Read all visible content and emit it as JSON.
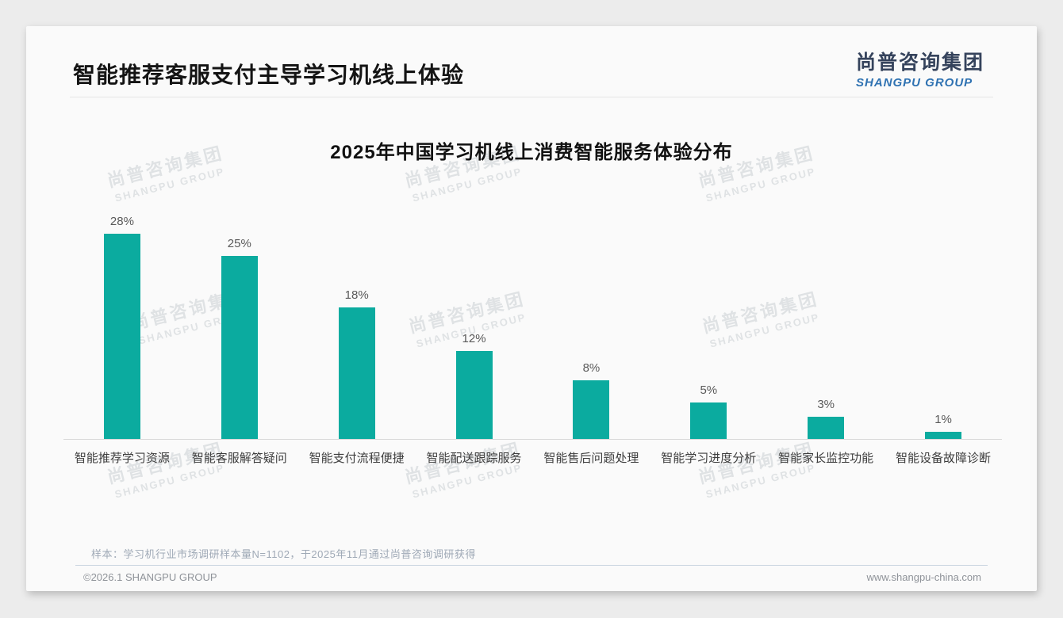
{
  "page": {
    "header": {
      "title": "智能推荐客服支付主导学习机线上体验"
    },
    "logo": {
      "cn": "尚普咨询集团",
      "en": "SHANGPU GROUP"
    },
    "watermark": {
      "cn": "尚普咨询集团",
      "en": "SHANGPU GROUP"
    },
    "note": "样本：学习机行业市场调研样本量N=1102，于2025年11月通过尚普咨询调研获得",
    "footer": {
      "left": "©2026.1 SHANGPU GROUP",
      "right": "www.shangpu-china.com"
    }
  },
  "chart_data": {
    "type": "bar",
    "title": "2025年中国学习机线上消费智能服务体验分布",
    "categories": [
      "智能推荐学习资源",
      "智能客服解答疑问",
      "智能支付流程便捷",
      "智能配送跟踪服务",
      "智能售后问题处理",
      "智能学习进度分析",
      "智能家长监控功能",
      "智能设备故障诊断"
    ],
    "values": [
      28,
      25,
      18,
      12,
      8,
      5,
      3,
      1
    ],
    "value_label_suffix": "%",
    "bar_color": "#0bab9f",
    "ylim": [
      0,
      30
    ],
    "grid": false,
    "legend_position": "none",
    "value_label_color": "#595959",
    "axis_line_color": "#d8d8d8"
  }
}
